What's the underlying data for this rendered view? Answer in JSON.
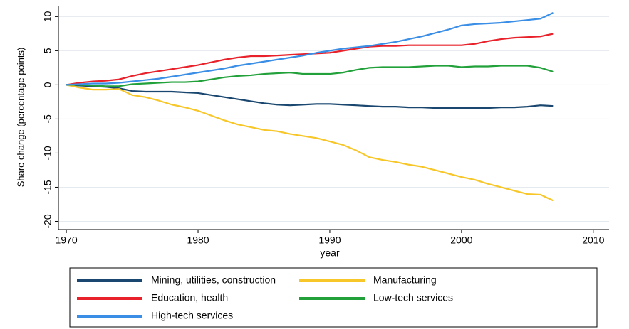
{
  "chart_data": {
    "type": "line",
    "y_label": "Share change (percentage points)",
    "x_label": "year",
    "x": [
      1970,
      1971,
      1972,
      1973,
      1974,
      1975,
      1976,
      1977,
      1978,
      1979,
      1980,
      1981,
      1982,
      1983,
      1984,
      1985,
      1986,
      1987,
      1988,
      1989,
      1990,
      1991,
      1992,
      1993,
      1994,
      1995,
      1996,
      1997,
      1998,
      1999,
      2000,
      2001,
      2002,
      2003,
      2004,
      2005,
      2006,
      2007
    ],
    "series": [
      {
        "name": "Mining, utilities, construction",
        "color": "#1a476f",
        "values": [
          0,
          -0.1,
          -0.2,
          -0.3,
          -0.5,
          -0.9,
          -1.0,
          -1.0,
          -1.0,
          -1.1,
          -1.2,
          -1.5,
          -1.8,
          -2.1,
          -2.4,
          -2.7,
          -2.9,
          -3.0,
          -2.9,
          -2.8,
          -2.8,
          -2.9,
          -3.0,
          -3.1,
          -3.2,
          -3.2,
          -3.3,
          -3.3,
          -3.4,
          -3.4,
          -3.4,
          -3.4,
          -3.4,
          -3.3,
          -3.3,
          -3.2,
          -3.0,
          -3.1
        ]
      },
      {
        "name": "Manufacturing",
        "color": "#f7c72a",
        "values": [
          0,
          -0.4,
          -0.7,
          -0.7,
          -0.6,
          -1.5,
          -1.8,
          -2.3,
          -2.9,
          -3.3,
          -3.8,
          -4.5,
          -5.2,
          -5.8,
          -6.2,
          -6.6,
          -6.8,
          -7.2,
          -7.5,
          -7.8,
          -8.3,
          -8.8,
          -9.6,
          -10.6,
          -11.0,
          -11.3,
          -11.7,
          -12.0,
          -12.5,
          -13.0,
          -13.5,
          -13.9,
          -14.5,
          -15.0,
          -15.5,
          -16.0,
          -16.1,
          -17.0
        ]
      },
      {
        "name": "Education, health",
        "color": "#e8212a",
        "values": [
          0,
          0.3,
          0.5,
          0.6,
          0.8,
          1.3,
          1.7,
          2.0,
          2.3,
          2.6,
          2.9,
          3.3,
          3.7,
          4.0,
          4.2,
          4.2,
          4.3,
          4.4,
          4.5,
          4.6,
          4.7,
          5.0,
          5.3,
          5.6,
          5.7,
          5.7,
          5.8,
          5.8,
          5.8,
          5.8,
          5.8,
          6.0,
          6.4,
          6.7,
          6.9,
          7.0,
          7.1,
          7.5
        ]
      },
      {
        "name": "Low-tech services",
        "color": "#22a03a",
        "values": [
          0,
          0,
          -0.1,
          -0.2,
          -0.2,
          0.1,
          0.2,
          0.3,
          0.4,
          0.4,
          0.5,
          0.8,
          1.1,
          1.3,
          1.4,
          1.6,
          1.7,
          1.8,
          1.6,
          1.6,
          1.6,
          1.8,
          2.2,
          2.5,
          2.6,
          2.6,
          2.6,
          2.7,
          2.8,
          2.8,
          2.6,
          2.7,
          2.7,
          2.8,
          2.8,
          2.8,
          2.5,
          1.9
        ]
      },
      {
        "name": "High-tech services",
        "color": "#3a8ee6",
        "values": [
          0,
          0.1,
          0.2,
          0.2,
          0.3,
          0.5,
          0.7,
          0.9,
          1.2,
          1.5,
          1.8,
          2.1,
          2.4,
          2.8,
          3.1,
          3.4,
          3.7,
          4.0,
          4.3,
          4.7,
          5.0,
          5.3,
          5.5,
          5.7,
          6.0,
          6.3,
          6.7,
          7.1,
          7.6,
          8.1,
          8.7,
          8.9,
          9.0,
          9.1,
          9.3,
          9.5,
          9.7,
          10.6
        ]
      }
    ],
    "xlim": [
      1969.4,
      2011.2
    ],
    "xticks": [
      1970,
      1980,
      1990,
      2000,
      2010
    ],
    "ylim": [
      -21.2,
      11.6
    ],
    "yticks": [
      10,
      5,
      0,
      -5,
      -10,
      -15,
      -20
    ],
    "grid": true
  }
}
